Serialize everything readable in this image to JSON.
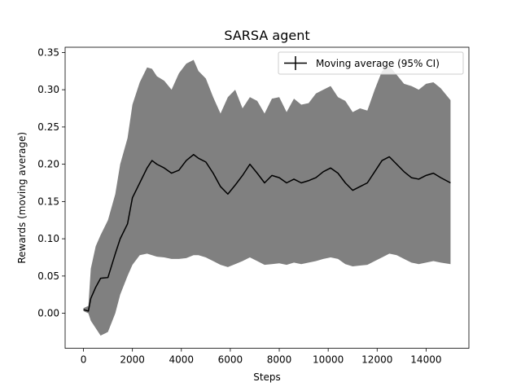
{
  "chart_data": {
    "type": "line",
    "title": "SARSA agent",
    "xlabel": "Steps",
    "ylabel": "Rewards (moving average)",
    "xlim": [
      -750,
      15750
    ],
    "ylim": [
      -0.047,
      0.357
    ],
    "xticks": [
      0,
      2000,
      4000,
      6000,
      8000,
      10000,
      12000,
      14000
    ],
    "yticks": [
      0.0,
      0.05,
      0.1,
      0.15,
      0.2,
      0.25,
      0.3,
      0.35
    ],
    "xtick_labels": [
      "0",
      "2000",
      "4000",
      "6000",
      "8000",
      "10000",
      "12000",
      "14000"
    ],
    "ytick_labels": [
      "0.00",
      "0.05",
      "0.10",
      "0.15",
      "0.20",
      "0.25",
      "0.30",
      "0.35"
    ],
    "grid": false,
    "legend": {
      "position": "top-right",
      "entries": [
        "Moving average (95% CI)"
      ]
    },
    "series": [
      {
        "name": "Moving average (95% CI)",
        "color": "#000000",
        "band_color": "#808080",
        "x": [
          0,
          200,
          300,
          500,
          700,
          1000,
          1300,
          1500,
          1800,
          2000,
          2300,
          2600,
          2800,
          3000,
          3300,
          3600,
          3900,
          4200,
          4500,
          4700,
          5000,
          5300,
          5600,
          5900,
          6200,
          6500,
          6800,
          7100,
          7400,
          7700,
          8000,
          8300,
          8600,
          8900,
          9200,
          9500,
          9800,
          10100,
          10400,
          10700,
          11000,
          11300,
          11600,
          11900,
          12200,
          12500,
          12800,
          13100,
          13400,
          13700,
          14000,
          14300,
          14600,
          15000
        ],
        "y": [
          0.005,
          0.003,
          0.02,
          0.035,
          0.047,
          0.048,
          0.08,
          0.1,
          0.12,
          0.155,
          0.175,
          0.195,
          0.205,
          0.2,
          0.195,
          0.188,
          0.192,
          0.205,
          0.213,
          0.208,
          0.203,
          0.188,
          0.17,
          0.16,
          0.172,
          0.185,
          0.2,
          0.188,
          0.175,
          0.185,
          0.182,
          0.175,
          0.18,
          0.175,
          0.178,
          0.182,
          0.19,
          0.195,
          0.188,
          0.175,
          0.165,
          0.17,
          0.175,
          0.19,
          0.205,
          0.21,
          0.2,
          0.19,
          0.182,
          0.18,
          0.185,
          0.188,
          0.182,
          0.175
        ],
        "upper": [
          0.007,
          0.01,
          0.06,
          0.09,
          0.105,
          0.125,
          0.16,
          0.2,
          0.235,
          0.28,
          0.31,
          0.33,
          0.328,
          0.318,
          0.312,
          0.3,
          0.322,
          0.335,
          0.34,
          0.325,
          0.315,
          0.29,
          0.268,
          0.29,
          0.3,
          0.275,
          0.29,
          0.285,
          0.268,
          0.288,
          0.29,
          0.27,
          0.288,
          0.28,
          0.282,
          0.295,
          0.3,
          0.305,
          0.29,
          0.285,
          0.27,
          0.275,
          0.272,
          0.3,
          0.325,
          0.332,
          0.32,
          0.308,
          0.305,
          0.3,
          0.308,
          0.31,
          0.302,
          0.286
        ],
        "lower": [
          0.003,
          0.0,
          -0.01,
          -0.02,
          -0.03,
          -0.025,
          0.0,
          0.025,
          0.05,
          0.065,
          0.078,
          0.08,
          0.078,
          0.076,
          0.075,
          0.073,
          0.073,
          0.074,
          0.078,
          0.078,
          0.075,
          0.07,
          0.065,
          0.062,
          0.066,
          0.07,
          0.075,
          0.07,
          0.065,
          0.066,
          0.067,
          0.065,
          0.068,
          0.066,
          0.068,
          0.07,
          0.073,
          0.075,
          0.073,
          0.066,
          0.063,
          0.064,
          0.065,
          0.07,
          0.075,
          0.08,
          0.078,
          0.073,
          0.068,
          0.066,
          0.068,
          0.07,
          0.068,
          0.066
        ]
      }
    ]
  }
}
